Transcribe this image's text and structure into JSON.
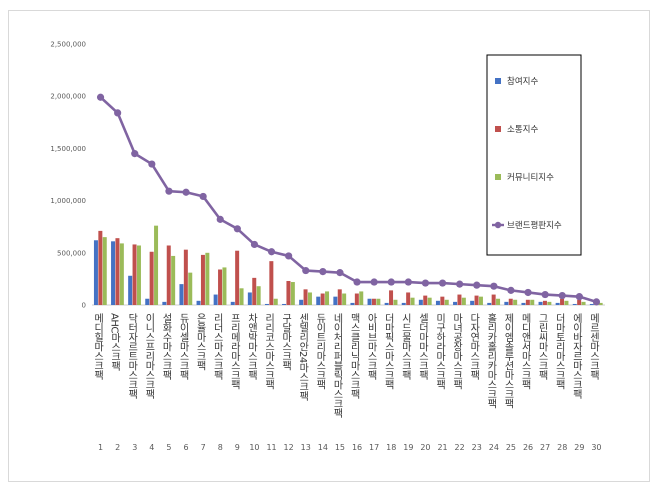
{
  "chart_data": {
    "type": "bar",
    "title": "",
    "xlabel": "",
    "ylabel": "",
    "ylim": [
      0,
      2500000
    ],
    "yticks": [
      "0",
      "500,000",
      "1,000,000",
      "1,500,000",
      "2,000,000",
      "2,500,000"
    ],
    "ytick_values": [
      0,
      500000,
      1000000,
      1500000,
      2000000,
      2500000
    ],
    "grid": false,
    "legend_position": "right",
    "categories": [
      "메디힐마스크팩",
      "AHC마스크팩",
      "닥터자르트마스크팩",
      "이니스프리마스크팩",
      "설화수마스크팩",
      "듀이셀마스크팩",
      "은율마스크팩",
      "리더스마스크팩",
      "프리메라마스크팩",
      "차앤박마스크팩",
      "리리코스마스크팩",
      "구달마스크팩",
      "센텔리안24마스크팩",
      "듀이트리마스크팩",
      "네이처리퍼블릭마스크팩",
      "맥스클리닉마스크팩",
      "아비브마스크팩",
      "더마픽스마스크팩",
      "시드물마스크팩",
      "셀더마마스크팩",
      "미구하라마스크팩",
      "마녀공장마스크팩",
      "다자연마스크팩",
      "홀리카홀리카마스크팩",
      "제이엠솔루션마스크팩",
      "메디앤서마스크팩",
      "그린씨마스크팩",
      "더마토리마스크팩",
      "에이바자르마스크팩",
      "메르센마스크팩"
    ],
    "ranks": [
      "1",
      "2",
      "3",
      "4",
      "5",
      "6",
      "7",
      "8",
      "9",
      "10",
      "11",
      "12",
      "13",
      "14",
      "15",
      "16",
      "17",
      "18",
      "19",
      "20",
      "21",
      "22",
      "23",
      "24",
      "25",
      "26",
      "27",
      "28",
      "29",
      "30"
    ],
    "series": [
      {
        "name": "참여지수",
        "kind": "bar",
        "color": "#4472c4",
        "values": [
          620000,
          610000,
          280000,
          60000,
          30000,
          200000,
          40000,
          100000,
          30000,
          120000,
          10000,
          10000,
          50000,
          80000,
          80000,
          20000,
          60000,
          20000,
          20000,
          50000,
          40000,
          30000,
          40000,
          20000,
          30000,
          20000,
          30000,
          20000,
          10000,
          10000
        ]
      },
      {
        "name": "소통지수",
        "kind": "bar",
        "color": "#c0504d",
        "values": [
          710000,
          640000,
          580000,
          510000,
          570000,
          530000,
          480000,
          340000,
          520000,
          260000,
          420000,
          230000,
          150000,
          110000,
          150000,
          110000,
          60000,
          140000,
          120000,
          90000,
          80000,
          100000,
          90000,
          100000,
          60000,
          50000,
          40000,
          60000,
          50000,
          20000
        ]
      },
      {
        "name": "커뮤니티지수",
        "kind": "bar",
        "color": "#9bbb59",
        "values": [
          650000,
          590000,
          570000,
          760000,
          470000,
          310000,
          500000,
          360000,
          160000,
          180000,
          60000,
          220000,
          120000,
          130000,
          110000,
          130000,
          60000,
          50000,
          70000,
          70000,
          50000,
          70000,
          80000,
          60000,
          50000,
          50000,
          30000,
          40000,
          30000,
          20000
        ]
      },
      {
        "name": "브랜드평판지수",
        "kind": "line",
        "color": "#8064a2",
        "values": [
          1990000,
          1840000,
          1450000,
          1350000,
          1090000,
          1080000,
          1040000,
          820000,
          730000,
          580000,
          510000,
          470000,
          330000,
          320000,
          310000,
          220000,
          220000,
          220000,
          220000,
          210000,
          210000,
          200000,
          190000,
          180000,
          140000,
          120000,
          100000,
          90000,
          80000,
          30000
        ]
      }
    ]
  }
}
